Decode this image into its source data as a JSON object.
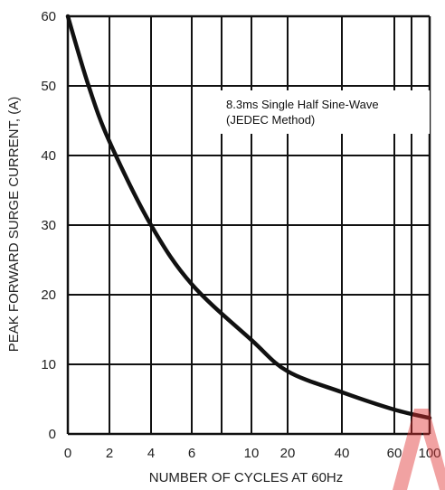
{
  "chart_data": {
    "type": "line",
    "ylabel": "PEAK FORWARD SURGE CURRENT, (A)",
    "xlabel": "NUMBER OF CYCLES AT 60Hz",
    "annotation_lines": [
      "8.3ms Single Half Sine-Wave",
      "(JEDEC Method)"
    ],
    "x_ticks": [
      {
        "label": "0",
        "value": 0
      },
      {
        "label": "2",
        "value": 2
      },
      {
        "label": "4",
        "value": 4
      },
      {
        "label": "6",
        "value": 6
      },
      {
        "label": "10",
        "value": 10
      },
      {
        "label": "20",
        "value": 20
      },
      {
        "label": "40",
        "value": 40
      },
      {
        "label": "60",
        "value": 60
      },
      {
        "label": "100",
        "value": 100
      }
    ],
    "x_grid_values": [
      0,
      2,
      4,
      6,
      8,
      10,
      20,
      40,
      60,
      80,
      100
    ],
    "y_ticks": [
      0,
      10,
      20,
      30,
      40,
      50,
      60
    ],
    "ylim": [
      0,
      60
    ],
    "grid": true,
    "series": [
      {
        "points": [
          {
            "x": 0,
            "y": 60
          },
          {
            "x": 1,
            "y": 50
          },
          {
            "x": 2,
            "y": 42
          },
          {
            "x": 4,
            "y": 30
          },
          {
            "x": 6,
            "y": 21.5
          },
          {
            "x": 10,
            "y": 13.5
          },
          {
            "x": 20,
            "y": 9
          },
          {
            "x": 40,
            "y": 6
          },
          {
            "x": 60,
            "y": 3.5
          },
          {
            "x": 100,
            "y": 2.3
          }
        ]
      }
    ],
    "colors": {
      "line": "#111111",
      "grid": "#111111",
      "background": "#ffffff",
      "watermark": "#e03030"
    }
  }
}
